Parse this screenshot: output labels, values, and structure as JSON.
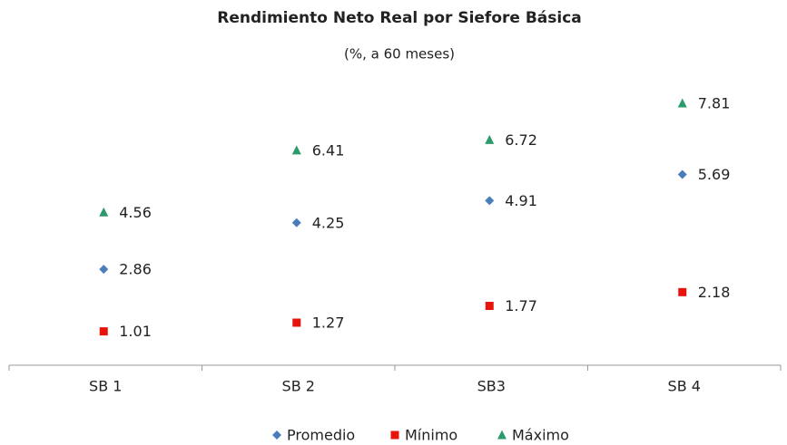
{
  "chart_data": {
    "type": "line",
    "title": "Rendimiento Neto Real  por Siefore Básica",
    "subtitle": "(%, a 60 meses)",
    "categories": [
      "SB 1",
      "SB 2",
      "SB3",
      "SB 4"
    ],
    "series": [
      {
        "name": "Promedio",
        "color": "#4a7ebb",
        "marker": "diamond",
        "values": [
          2.86,
          4.25,
          4.91,
          5.69
        ]
      },
      {
        "name": "Mínimo",
        "color": "#e8140c",
        "marker": "square",
        "values": [
          1.01,
          1.27,
          1.77,
          2.18
        ]
      },
      {
        "name": "Máximo",
        "color": "#2c9b6c",
        "marker": "triangle",
        "values": [
          4.56,
          6.41,
          6.72,
          7.81
        ]
      }
    ],
    "ylim": [
      0,
      9
    ],
    "legend": "bottom"
  }
}
